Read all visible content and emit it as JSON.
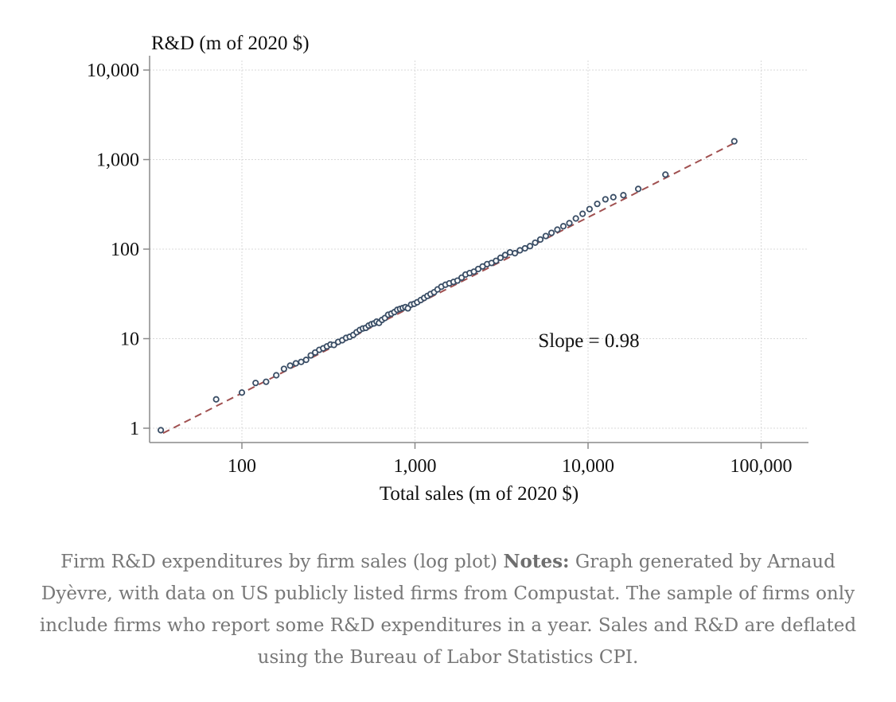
{
  "chart_data": {
    "type": "scatter",
    "title": "",
    "xlabel": "Total sales (m of 2020 $)",
    "ylabel": "R&D (m of 2020 $)",
    "x_scale": "log",
    "y_scale": "log",
    "xlim": [
      30,
      110000
    ],
    "ylim": [
      0.85,
      10000
    ],
    "x_ticks": [
      100,
      1000,
      10000,
      100000
    ],
    "x_tick_labels": [
      "100",
      "1,000",
      "10,000",
      "100,000"
    ],
    "y_ticks": [
      1,
      10,
      100,
      1000,
      10000
    ],
    "y_tick_labels": [
      "1",
      "10",
      "100",
      "1,000",
      "10,000"
    ],
    "grid": true,
    "annotation": "Slope = 0.98",
    "fit_line": {
      "slope": 0.98,
      "x": [
        35,
        70000
      ],
      "y": [
        0.88,
        1530
      ],
      "color": "#a05050",
      "style": "dashed"
    },
    "marker_color": "#3a4e66",
    "series": [
      {
        "x": [
          34,
          71,
          100,
          120,
          138,
          158,
          175,
          190,
          205,
          220,
          235,
          250,
          265,
          280,
          295,
          310,
          325,
          340,
          360,
          380,
          400,
          420,
          440,
          460,
          480,
          500,
          520,
          540,
          560,
          580,
          600,
          620,
          645,
          670,
          700,
          730,
          760,
          790,
          820,
          850,
          880,
          910,
          950,
          990,
          1030,
          1080,
          1130,
          1180,
          1230,
          1290,
          1350,
          1420,
          1500,
          1580,
          1670,
          1760,
          1860,
          1960,
          2070,
          2190,
          2320,
          2460,
          2610,
          2770,
          2940,
          3120,
          3320,
          3540,
          3780,
          4040,
          4320,
          4620,
          4950,
          5300,
          5700,
          6150,
          6650,
          7200,
          7800,
          8500,
          9300,
          10200,
          11300,
          12600,
          14000,
          16000,
          19500,
          28000,
          70000
        ],
        "y": [
          0.95,
          2.1,
          2.5,
          3.2,
          3.3,
          3.9,
          4.6,
          5.0,
          5.3,
          5.5,
          5.8,
          6.5,
          7.0,
          7.5,
          7.8,
          8.2,
          8.6,
          8.5,
          9.2,
          9.6,
          10.2,
          10.5,
          11.0,
          11.8,
          12.5,
          13.0,
          13.2,
          14.0,
          14.5,
          14.8,
          15.5,
          15.0,
          16.2,
          17.0,
          18.5,
          19.0,
          19.8,
          21.0,
          21.5,
          22.0,
          22.5,
          21.8,
          24.0,
          24.5,
          25.5,
          27.0,
          28.5,
          30.0,
          31.5,
          33.0,
          35.5,
          38.0,
          40.0,
          41.5,
          43.0,
          44.5,
          48.0,
          52.0,
          54.0,
          56.0,
          60.0,
          64.0,
          68.0,
          70.0,
          74.0,
          80.0,
          86.0,
          92.0,
          90.0,
          97.0,
          102.0,
          108.0,
          118.0,
          128.0,
          140.0,
          152.0,
          165.0,
          180.0,
          195.0,
          220.0,
          248.0,
          280.0,
          320.0,
          360.0,
          380.0,
          400.0,
          470.0,
          680.0,
          1600.0
        ]
      }
    ]
  },
  "caption": {
    "title": "Firm R&D expenditures by firm sales (log plot)",
    "notes_label": "Notes:",
    "notes_text": "Graph generated by Arnaud Dyèvre, with data on US publicly listed firms from Compustat. The sample of firms only include firms who report some R&D expenditures in a year. Sales and R&D are deflated using the Bureau of Labor Statistics CPI."
  }
}
